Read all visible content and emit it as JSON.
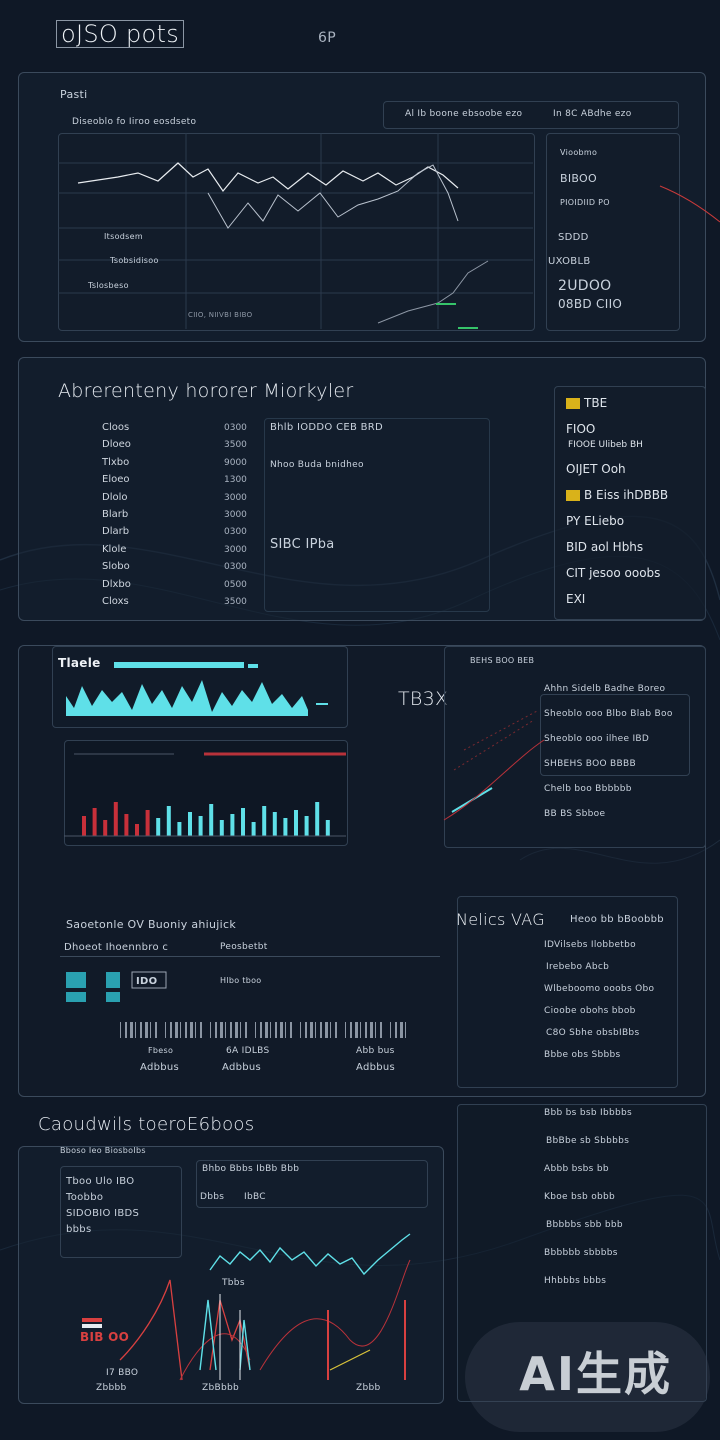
{
  "app": {
    "logo": "oJSO pots",
    "header_mark": "6P"
  },
  "panel1": {
    "corner": "Pasti",
    "title": "Diseoblo fo Iiroo eosdseto",
    "center_title": "Al Ib boone ebsoobe ezo",
    "right_title": "In 8C ABdhe ezo",
    "labels": [
      "Itsodsem",
      "Tsobsidisoo",
      "Tslosbeso"
    ],
    "right_items": [
      "Vioobmo",
      "BIBOO",
      "PIOIDIID PO",
      "SDDD",
      "UXOBLB",
      "2UDOO",
      "08BD CIIO"
    ],
    "axis_note": "CIIO, NIIVBI BIBO"
  },
  "panel2": {
    "title": "Abrerenteny hororer Miorkyler",
    "center_title": "Bhlb IODDO CEB BRD",
    "center_sub": "Nhoo Buda bnidheo",
    "mid_label": "SIBC IPba",
    "rows": [
      {
        "label": "Cloos",
        "value": "0300"
      },
      {
        "label": "Dloeo",
        "value": "3500"
      },
      {
        "label": "Tlxbo",
        "value": "9000"
      },
      {
        "label": "Eloeo",
        "value": "1300"
      },
      {
        "label": "Dlolo",
        "value": "3000"
      },
      {
        "label": "Blarb",
        "value": "3000"
      },
      {
        "label": "Dlarb",
        "value": "0300"
      },
      {
        "label": "Klole",
        "value": "3000"
      },
      {
        "label": "Slobo",
        "value": "0300"
      },
      {
        "label": "Dlxbo",
        "value": "0500"
      },
      {
        "label": "Cloxs",
        "value": "3500"
      }
    ],
    "legend": [
      {
        "badge": "y",
        "label": "TBE"
      },
      {
        "badge": "",
        "label": "FIOO",
        "sub": "FIOOE Ulibeb BH"
      },
      {
        "badge": "",
        "label": "OIJET Ooh"
      },
      {
        "badge": "y",
        "label": "B Eiss ihDBBB"
      },
      {
        "badge": "",
        "label": "PY ELiebo"
      },
      {
        "badge": "",
        "label": "BID aol Hbhs"
      },
      {
        "badge": "",
        "label": "CIT jesoo ooobs"
      },
      {
        "badge": "",
        "label": "EXI"
      }
    ]
  },
  "panel3": {
    "wave_label": "Tlaele",
    "big_code": "TB3X",
    "section_title": "Saoetonle OV Buoniy ahiujick",
    "col_a": "Dhoeot Ihoennbro c",
    "col_b": "Peosbetbt",
    "stat_label": "IDO",
    "footer_a": "Fbeso",
    "footer_b": "6A IDLBS",
    "footer_c": "Adbbus",
    "footer_d": "Abb bus",
    "footer_e": "Hlbo tboo",
    "right_top": "BEHS BOO BEB",
    "right_list": [
      "Ahhn Sidelb Badhe Boreo",
      "Sheoblo ooo Blbo Blab Boo",
      "Sheoblo ooo ilhee IBD",
      "SHBEHS BOO BBBB",
      "Chelb boo Bbbbbb",
      "BB BS Sbboe"
    ]
  },
  "panel4": {
    "title": "Nelics VAG",
    "title_b": "Heoo bb bBoobbb",
    "items": [
      "IDVilsebs Ilobbetbo",
      "Irebebo Abcb",
      "Wlbeboomo ooobs Obo",
      "Cioobe obohs bbob",
      "C8O Sbhe obsbIBbs",
      "Bbbe obs Sbbbs",
      "Bbb bs bsb Ibbbbs",
      "BbBbe sb Sbbbbs",
      "Abbb bsbs bb",
      "Kboe bsb obbb",
      "Bbbbbs sbb bbb",
      "Bbbbbb sbbbbs",
      "Hhbbbs bbbs"
    ]
  },
  "panel5": {
    "title": "Caoudwils toeroE6boos",
    "subtitle": "Bboso Ieo BiosboIbs",
    "left_list": [
      "Tboo Ulo IBO",
      "Toobbo",
      "SIDOBIO IBDS",
      "bbbs",
      "BIB OO"
    ],
    "chart_title": "Bhbo Bbbs IbBb Bbb",
    "chart_sub_a": "Dbbs",
    "chart_sub_b": "IbBC",
    "marker": "Tbbs",
    "footer": [
      "I7 BBO",
      "Zbbbb",
      "ZbBbbb",
      "Zbbb"
    ]
  },
  "watermark": "AI生成"
}
